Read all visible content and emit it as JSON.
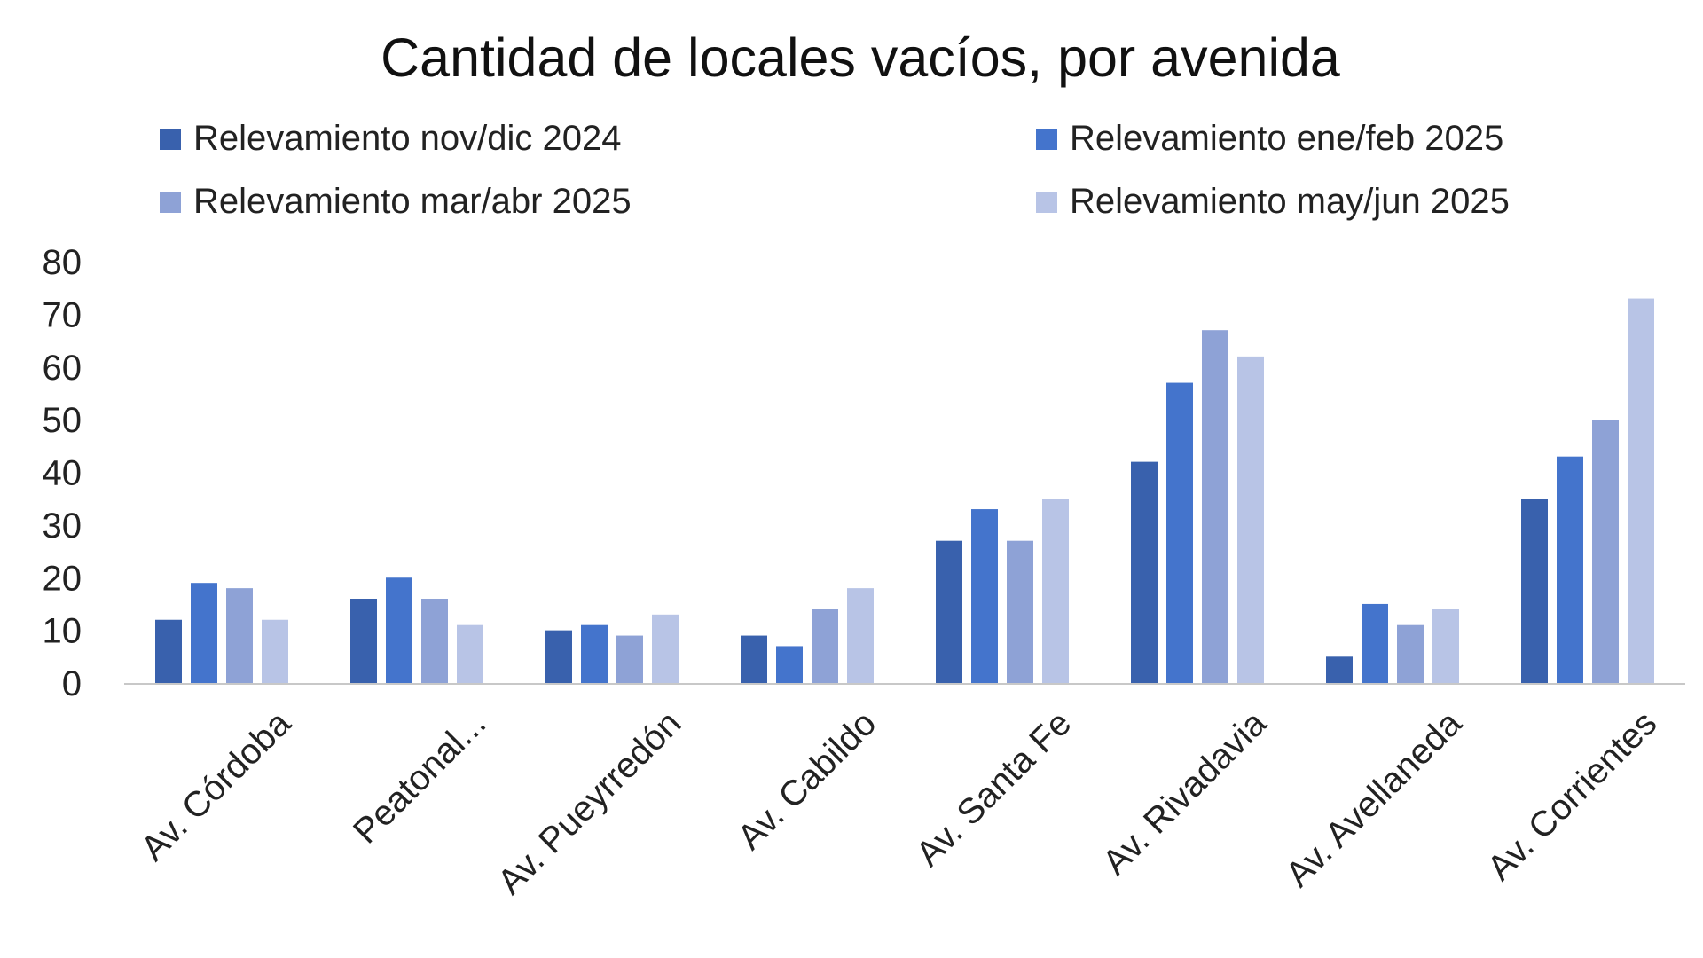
{
  "chart_data": {
    "type": "bar",
    "title": "Cantidad de locales vacíos, por avenida",
    "xlabel": "",
    "ylabel": "",
    "ylim": [
      0,
      80
    ],
    "yticks": [
      0,
      10,
      20,
      30,
      40,
      50,
      60,
      70,
      80
    ],
    "grid": false,
    "legend_position": "top",
    "categories": [
      "Av. Córdoba",
      "Peatonal...",
      "Av. Pueyrredón",
      "Av. Cabildo",
      "Av. Santa Fe",
      "Av. Rivadavia",
      "Av. Avellaneda",
      "Av. Corrientes"
    ],
    "series": [
      {
        "name": "Relevamiento nov/dic 2024",
        "color": "#3961ad",
        "values": [
          12,
          16,
          10,
          9,
          27,
          42,
          5,
          35
        ]
      },
      {
        "name": "Relevamiento ene/feb 2025",
        "color": "#4474cc",
        "values": [
          19,
          20,
          11,
          7,
          33,
          57,
          15,
          43
        ]
      },
      {
        "name": "Relevamiento mar/abr 2025",
        "color": "#8ea2d6",
        "values": [
          18,
          16,
          9,
          14,
          27,
          67,
          11,
          50
        ]
      },
      {
        "name": "Relevamiento may/jun 2025",
        "color": "#b8c4e6",
        "values": [
          12,
          11,
          13,
          18,
          35,
          62,
          14,
          73
        ]
      }
    ]
  }
}
